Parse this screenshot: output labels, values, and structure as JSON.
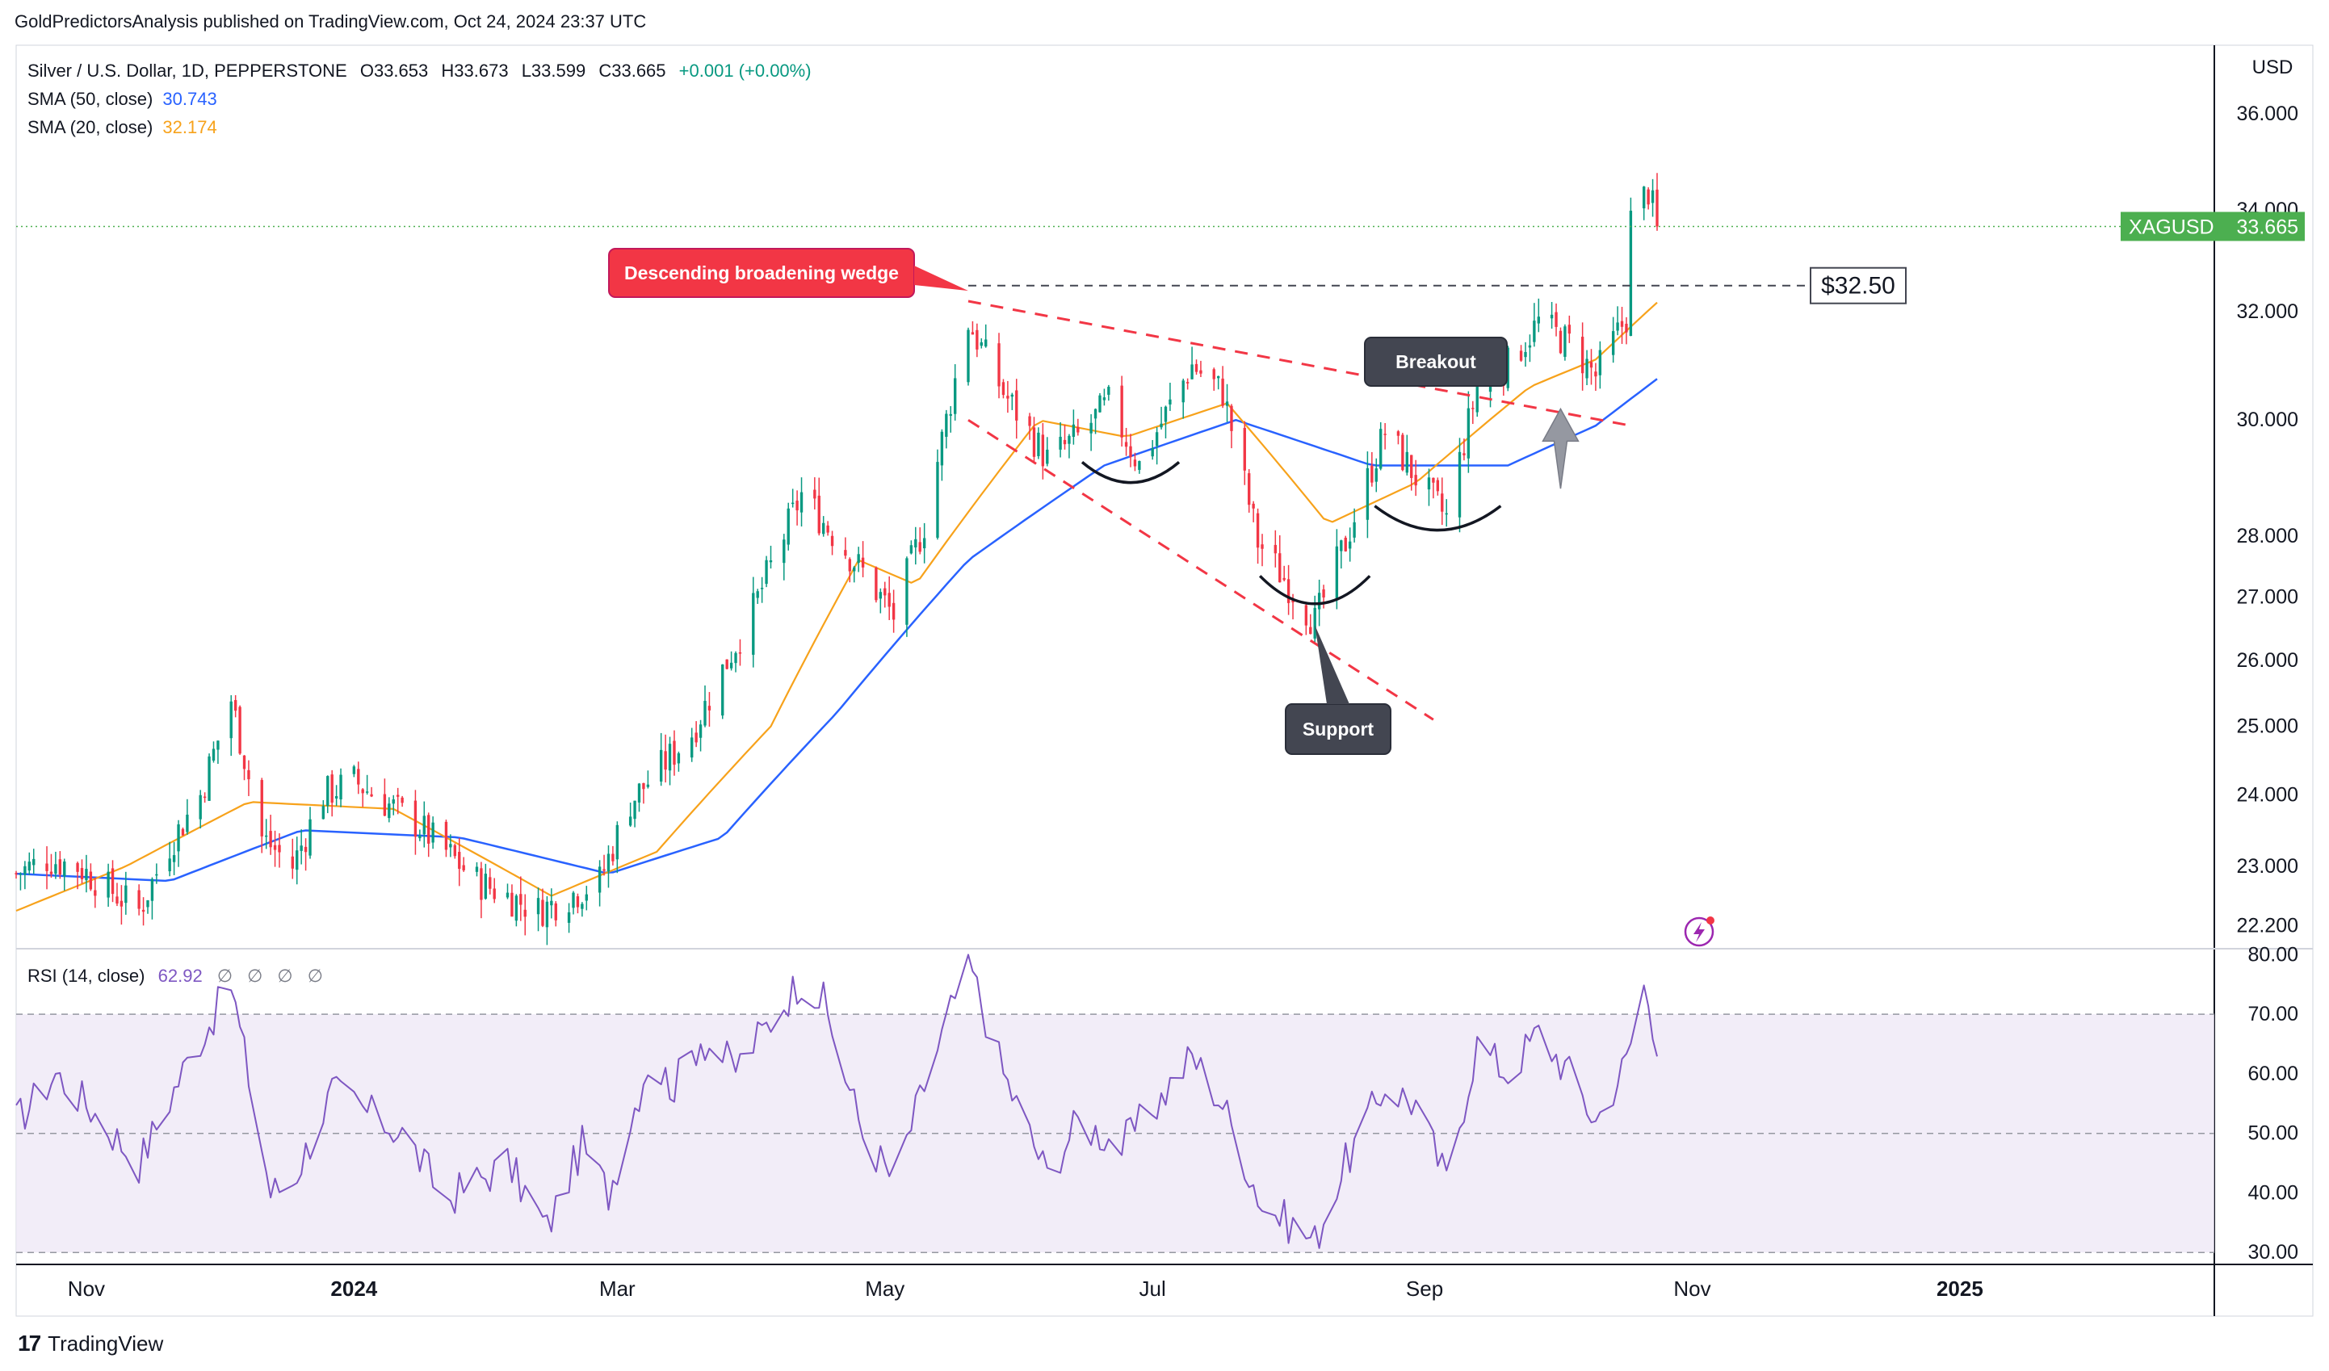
{
  "publisher": "GoldPredictorsAnalysis published on TradingView.com, Oct 24, 2024 23:37 UTC",
  "brand": "TradingView",
  "legend": {
    "symbol_line": "Silver / U.S. Dollar, 1D, PEPPERSTONE",
    "open": "O33.653",
    "high": "H33.673",
    "low": "L33.599",
    "close": "C33.665",
    "change": "+0.001 (+0.00%)",
    "sma50_label": "SMA (50, close)",
    "sma50_value": "30.743",
    "sma20_label": "SMA (20, close)",
    "sma20_value": "32.174",
    "rsi_label": "RSI (14, close)",
    "rsi_value": "62.92",
    "rsi_na": [
      "∅",
      "∅",
      "∅",
      "∅"
    ]
  },
  "currency": "USD",
  "colors": {
    "up": "#089981",
    "down": "#f23645",
    "sma50": "#2962ff",
    "sma20": "#f7a21b",
    "rsi": "#7e57c2",
    "rsi_band": "#ede7f6",
    "annotation_red": "#f23645",
    "annotation_dark": "#434651",
    "price_tag": "#4caf50"
  },
  "chart_data": [
    {
      "type": "candlestick",
      "title": "Silver / U.S. Dollar, 1D, PEPPERSTONE",
      "y_scale": "log",
      "ylim": [
        21.9,
        37.5
      ],
      "x_range": [
        "2023-10-16",
        "2025-02-28"
      ],
      "y_ticks": [
        "36.000",
        "34.000",
        "32.000",
        "30.000",
        "28.000",
        "27.000",
        "26.000",
        "25.000",
        "24.000",
        "23.000",
        "22.200"
      ],
      "x_ticks": [
        {
          "date": "2023-11-01",
          "label": "Nov",
          "bold": false
        },
        {
          "date": "2024-01-01",
          "label": "2024",
          "bold": true
        },
        {
          "date": "2024-03-01",
          "label": "Mar",
          "bold": false
        },
        {
          "date": "2024-05-01",
          "label": "May",
          "bold": false
        },
        {
          "date": "2024-07-01",
          "label": "Jul",
          "bold": false
        },
        {
          "date": "2024-09-01",
          "label": "Sep",
          "bold": false
        },
        {
          "date": "2024-11-01",
          "label": "Nov",
          "bold": false
        },
        {
          "date": "2025-01-01",
          "label": "2025",
          "bold": true
        }
      ],
      "price_path": [
        {
          "date": "2023-10-16",
          "close": 22.9
        },
        {
          "date": "2023-10-23",
          "close": 23.1
        },
        {
          "date": "2023-10-30",
          "close": 23.0
        },
        {
          "date": "2023-11-06",
          "close": 22.7
        },
        {
          "date": "2023-11-13",
          "close": 22.4
        },
        {
          "date": "2023-11-20",
          "close": 23.3
        },
        {
          "date": "2023-11-27",
          "close": 24.0
        },
        {
          "date": "2023-12-04",
          "close": 25.4
        },
        {
          "date": "2023-12-11",
          "close": 23.4
        },
        {
          "date": "2023-12-18",
          "close": 23.0
        },
        {
          "date": "2023-12-25",
          "close": 24.0
        },
        {
          "date": "2024-01-01",
          "close": 24.2
        },
        {
          "date": "2024-01-15",
          "close": 23.6
        },
        {
          "date": "2024-01-29",
          "close": 22.8
        },
        {
          "date": "2024-02-12",
          "close": 22.4
        },
        {
          "date": "2024-02-26",
          "close": 22.8
        },
        {
          "date": "2024-03-04",
          "close": 23.9
        },
        {
          "date": "2024-03-18",
          "close": 24.9
        },
        {
          "date": "2024-04-01",
          "close": 26.8
        },
        {
          "date": "2024-04-12",
          "close": 28.7
        },
        {
          "date": "2024-04-26",
          "close": 27.4
        },
        {
          "date": "2024-05-03",
          "close": 26.7
        },
        {
          "date": "2024-05-10",
          "close": 28.2
        },
        {
          "date": "2024-05-20",
          "close": 31.8
        },
        {
          "date": "2024-05-28",
          "close": 30.5
        },
        {
          "date": "2024-06-07",
          "close": 29.3
        },
        {
          "date": "2024-06-14",
          "close": 29.7
        },
        {
          "date": "2024-06-21",
          "close": 30.3
        },
        {
          "date": "2024-06-28",
          "close": 29.2
        },
        {
          "date": "2024-07-10",
          "close": 31.0
        },
        {
          "date": "2024-07-17",
          "close": 30.5
        },
        {
          "date": "2024-07-25",
          "close": 27.9
        },
        {
          "date": "2024-08-07",
          "close": 26.6
        },
        {
          "date": "2024-08-14",
          "close": 27.9
        },
        {
          "date": "2024-08-23",
          "close": 29.8
        },
        {
          "date": "2024-08-30",
          "close": 29.0
        },
        {
          "date": "2024-09-06",
          "close": 28.3
        },
        {
          "date": "2024-09-13",
          "close": 30.6
        },
        {
          "date": "2024-09-20",
          "close": 31.0
        },
        {
          "date": "2024-09-27",
          "close": 31.8
        },
        {
          "date": "2024-10-04",
          "close": 31.4
        },
        {
          "date": "2024-10-10",
          "close": 30.8
        },
        {
          "date": "2024-10-17",
          "close": 31.9
        },
        {
          "date": "2024-10-18",
          "close": 33.8
        },
        {
          "date": "2024-10-22",
          "close": 34.4
        },
        {
          "date": "2024-10-24",
          "close": 33.665
        }
      ],
      "sma20_path": [
        {
          "date": "2023-10-16",
          "value": 22.4
        },
        {
          "date": "2023-11-10",
          "value": 23.0
        },
        {
          "date": "2023-12-08",
          "value": 23.9
        },
        {
          "date": "2024-01-10",
          "value": 23.8
        },
        {
          "date": "2024-02-15",
          "value": 22.6
        },
        {
          "date": "2024-03-10",
          "value": 23.2
        },
        {
          "date": "2024-04-05",
          "value": 25.0
        },
        {
          "date": "2024-04-25",
          "value": 27.6
        },
        {
          "date": "2024-05-08",
          "value": 27.2
        },
        {
          "date": "2024-06-05",
          "value": 30.0
        },
        {
          "date": "2024-06-25",
          "value": 29.7
        },
        {
          "date": "2024-07-18",
          "value": 30.3
        },
        {
          "date": "2024-08-10",
          "value": 28.2
        },
        {
          "date": "2024-08-30",
          "value": 28.9
        },
        {
          "date": "2024-09-25",
          "value": 30.6
        },
        {
          "date": "2024-10-10",
          "value": 31.1
        },
        {
          "date": "2024-10-24",
          "value": 32.174
        }
      ],
      "sma50_path": [
        {
          "date": "2023-10-16",
          "value": 22.9
        },
        {
          "date": "2023-11-20",
          "value": 22.8
        },
        {
          "date": "2023-12-20",
          "value": 23.5
        },
        {
          "date": "2024-01-25",
          "value": 23.4
        },
        {
          "date": "2024-02-28",
          "value": 22.9
        },
        {
          "date": "2024-03-25",
          "value": 23.4
        },
        {
          "date": "2024-04-20",
          "value": 25.2
        },
        {
          "date": "2024-05-20",
          "value": 27.6
        },
        {
          "date": "2024-06-20",
          "value": 29.2
        },
        {
          "date": "2024-07-20",
          "value": 30.0
        },
        {
          "date": "2024-08-20",
          "value": 29.2
        },
        {
          "date": "2024-09-20",
          "value": 29.2
        },
        {
          "date": "2024-10-10",
          "value": 29.9
        },
        {
          "date": "2024-10-24",
          "value": 30.743
        }
      ],
      "current_price": {
        "symbol": "XAGUSD",
        "value": "33.665"
      },
      "annotations": [
        {
          "id": "wedge",
          "text": "Descending broadening wedge",
          "style": "red-callout",
          "anchor": {
            "date": "2024-05-20",
            "price": 32.4
          }
        },
        {
          "id": "breakout",
          "text": "Breakout",
          "style": "dark-callout",
          "anchor": {
            "date": "2024-09-18",
            "price": 30.6
          }
        },
        {
          "id": "support",
          "text": "Support",
          "style": "dark-callout",
          "anchor": {
            "date": "2024-08-07",
            "price": 26.55
          }
        },
        {
          "id": "level",
          "text": "$32.50",
          "style": "boxed",
          "price": 32.5
        }
      ],
      "wedge_lines": [
        {
          "from": {
            "date": "2024-05-20",
            "price": 32.2
          },
          "to": {
            "date": "2024-10-18",
            "price": 29.9
          }
        },
        {
          "from": {
            "date": "2024-05-20",
            "price": 30.0
          },
          "to": {
            "date": "2024-09-03",
            "price": 25.1
          }
        }
      ],
      "resistance_line": {
        "price": 32.5,
        "from": "2024-05-20",
        "to": "2024-10-28"
      }
    },
    {
      "type": "line",
      "title": "RSI (14, close)",
      "ylim": [
        28,
        81
      ],
      "y_ticks": [
        "80.00",
        "70.00",
        "60.00",
        "50.00",
        "40.00",
        "30.00"
      ],
      "bands": {
        "upper": 70,
        "middle": 50,
        "lower": 30
      },
      "series": [
        {
          "values": [
            {
              "date": "2023-10-16",
              "value": 52
            },
            {
              "date": "2023-10-25",
              "value": 60
            },
            {
              "date": "2023-11-01",
              "value": 55
            },
            {
              "date": "2023-11-13",
              "value": 45
            },
            {
              "date": "2023-11-24",
              "value": 62
            },
            {
              "date": "2023-12-04",
              "value": 75
            },
            {
              "date": "2023-12-13",
              "value": 40
            },
            {
              "date": "2023-12-18",
              "value": 42
            },
            {
              "date": "2023-12-27",
              "value": 57
            },
            {
              "date": "2024-01-12",
              "value": 50
            },
            {
              "date": "2024-01-22",
              "value": 39
            },
            {
              "date": "2024-02-05",
              "value": 45
            },
            {
              "date": "2024-02-14",
              "value": 34
            },
            {
              "date": "2024-02-22",
              "value": 48
            },
            {
              "date": "2024-02-28",
              "value": 40
            },
            {
              "date": "2024-03-08",
              "value": 62
            },
            {
              "date": "2024-03-14",
              "value": 58
            },
            {
              "date": "2024-03-20",
              "value": 66
            },
            {
              "date": "2024-03-28",
              "value": 61
            },
            {
              "date": "2024-04-12",
              "value": 76
            },
            {
              "date": "2024-04-17",
              "value": 72
            },
            {
              "date": "2024-04-26",
              "value": 50
            },
            {
              "date": "2024-05-03",
              "value": 42
            },
            {
              "date": "2024-05-10",
              "value": 58
            },
            {
              "date": "2024-05-20",
              "value": 79
            },
            {
              "date": "2024-05-28",
              "value": 60
            },
            {
              "date": "2024-06-07",
              "value": 43
            },
            {
              "date": "2024-06-14",
              "value": 52
            },
            {
              "date": "2024-06-24",
              "value": 48
            },
            {
              "date": "2024-07-02",
              "value": 55
            },
            {
              "date": "2024-07-10",
              "value": 63
            },
            {
              "date": "2024-07-17",
              "value": 55
            },
            {
              "date": "2024-07-26",
              "value": 38
            },
            {
              "date": "2024-08-07",
              "value": 32
            },
            {
              "date": "2024-08-14",
              "value": 45
            },
            {
              "date": "2024-08-23",
              "value": 58
            },
            {
              "date": "2024-08-30",
              "value": 55
            },
            {
              "date": "2024-09-06",
              "value": 42
            },
            {
              "date": "2024-09-13",
              "value": 65
            },
            {
              "date": "2024-09-20",
              "value": 60
            },
            {
              "date": "2024-09-27",
              "value": 67
            },
            {
              "date": "2024-10-04",
              "value": 60
            },
            {
              "date": "2024-10-10",
              "value": 52
            },
            {
              "date": "2024-10-17",
              "value": 62
            },
            {
              "date": "2024-10-21",
              "value": 75
            },
            {
              "date": "2024-10-24",
              "value": 62.92
            }
          ]
        }
      ]
    }
  ]
}
